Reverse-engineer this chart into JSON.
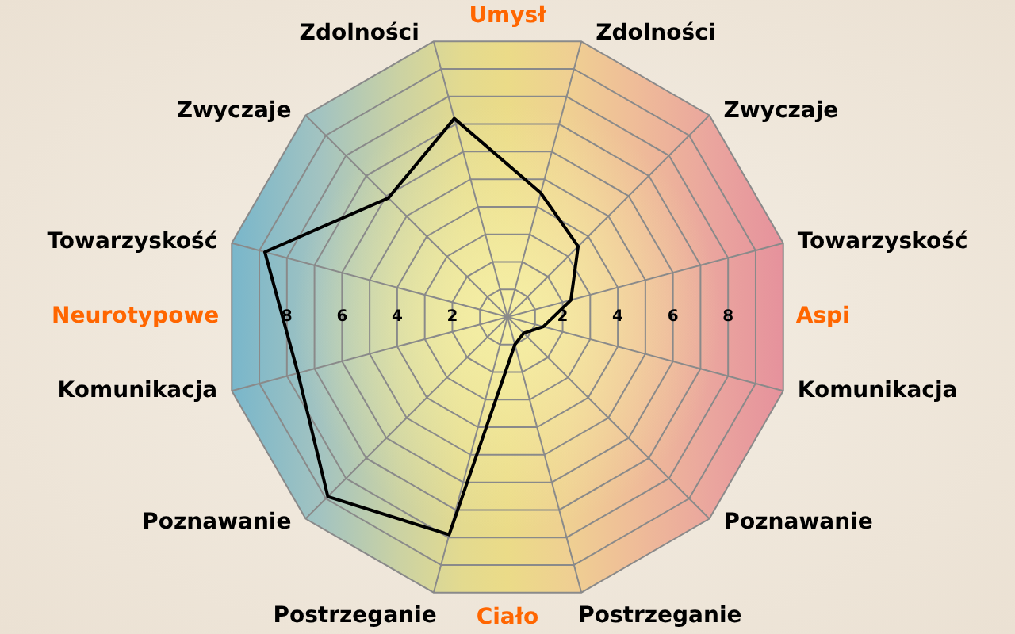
{
  "chart_data": {
    "type": "radar",
    "categories": [
      "Zdolności",
      "Zwyczaje",
      "Towarzyskość",
      "Komunikacja",
      "Poznawanie",
      "Postrzeganie",
      "Postrzeganie",
      "Poznawanie",
      "Komunikacja",
      "Towarzyskość",
      "Zwyczaje",
      "Zdolności"
    ],
    "series": [
      {
        "color": "#000000",
        "values": [
          4.5,
          3.5,
          2.3,
          1.3,
          0.8,
          1.0,
          7.9,
          8.9,
          7.6,
          8.8,
          5.9,
          7.2
        ]
      }
    ],
    "ylim": [
      0,
      10
    ],
    "yticks": [
      2,
      4,
      6,
      8,
      2,
      4,
      6,
      8
    ],
    "annotations": [
      "Umysł",
      "Aspi",
      "Ciało",
      "Neurotypowe"
    ],
    "grid": true,
    "marker": "none"
  }
}
